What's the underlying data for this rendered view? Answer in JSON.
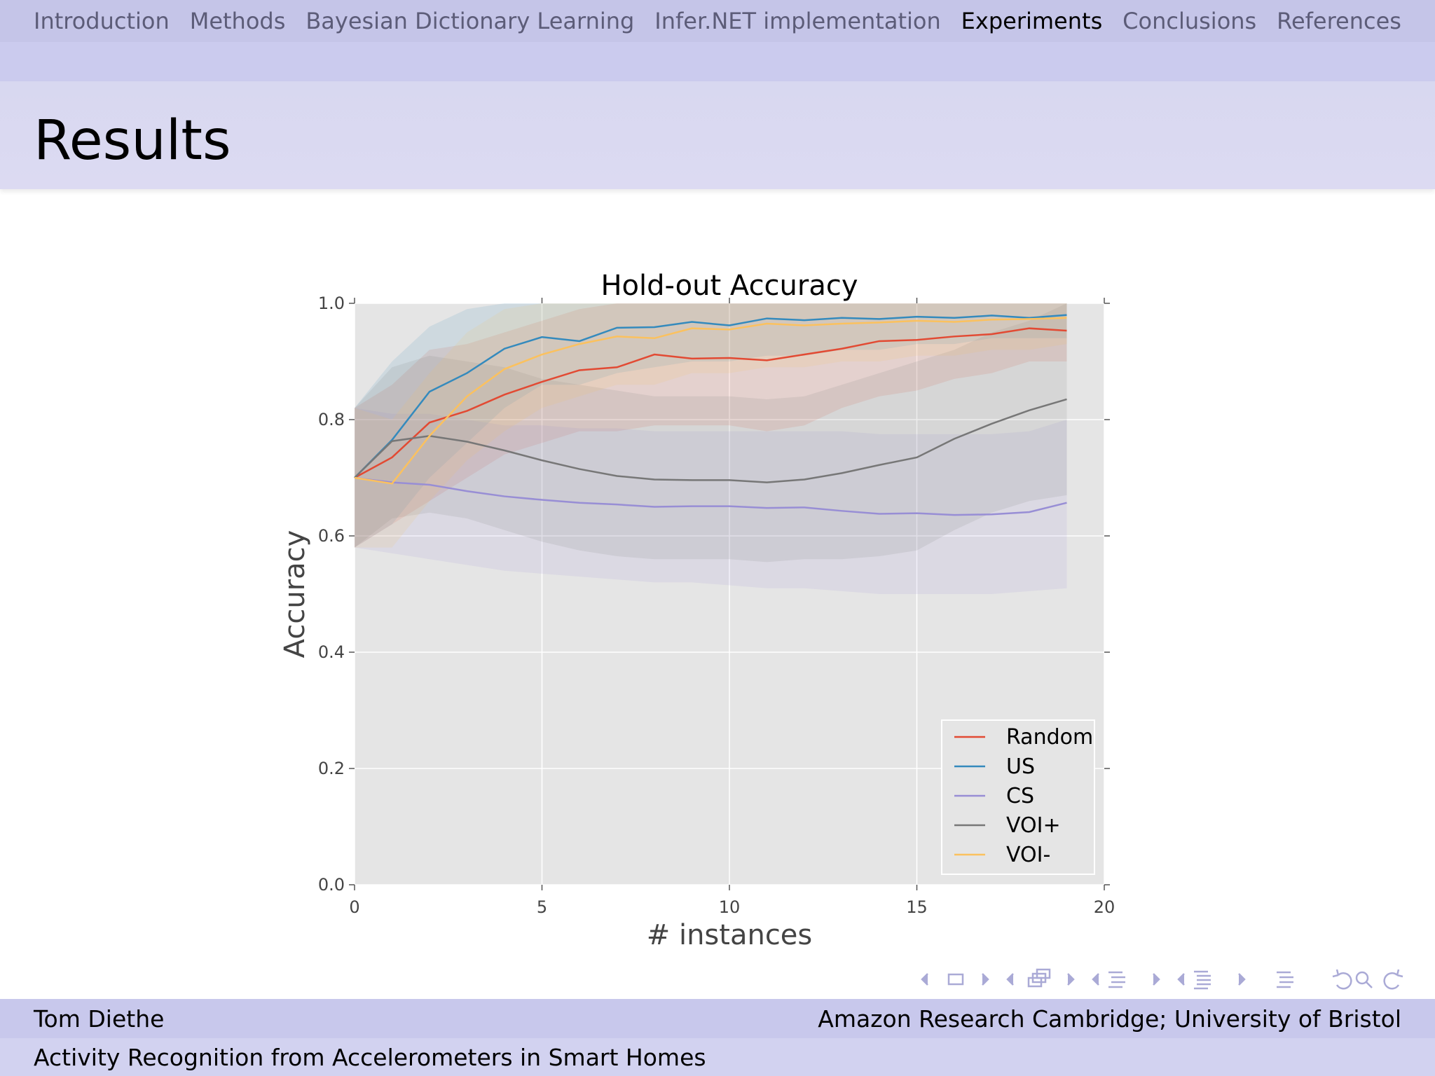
{
  "nav": {
    "items": [
      {
        "label": "Introduction",
        "active": false
      },
      {
        "label": "Methods",
        "active": false
      },
      {
        "label": "Bayesian Dictionary Learning",
        "active": false
      },
      {
        "label": "Infer.NET implementation",
        "active": false
      },
      {
        "label": "Experiments",
        "active": true
      },
      {
        "label": "Conclusions",
        "active": false
      },
      {
        "label": "References",
        "active": false
      }
    ]
  },
  "slide": {
    "title": "Results"
  },
  "footer": {
    "author": "Tom Diethe",
    "affiliation": "Amazon Research Cambridge; University of Bristol",
    "talk_title": "Activity Recognition from Accelerometers in Smart Homes"
  },
  "beamer_nav_icons": [
    "frame-prev-icon",
    "frame-icon",
    "frame-next-icon",
    "subsection-prev-icon",
    "subsection-icon",
    "subsection-next-icon",
    "section-prev-icon",
    "section-icon",
    "section-next-icon",
    "document-prev-icon",
    "document-icon",
    "document-next-icon",
    "outline-icon",
    "back-icon",
    "search-icon",
    "forward-icon"
  ],
  "colors": {
    "Random": "#e24a33",
    "US": "#348abd",
    "CS": "#988ed5",
    "VOI+": "#777777",
    "VOI-": "#fbc15e",
    "plot_bg": "#e5e5e5"
  },
  "chart_data": {
    "type": "line",
    "title": "Hold-out Accuracy",
    "xlabel": "# instances",
    "ylabel": "Accuracy",
    "xlim": [
      0,
      20
    ],
    "ylim": [
      0.0,
      1.0
    ],
    "xticks": [
      "0",
      "5",
      "10",
      "15",
      "20"
    ],
    "yticks": [
      "0.0",
      "0.2",
      "0.4",
      "0.6",
      "0.8",
      "1.0"
    ],
    "grid": true,
    "legend_position": "lower-right",
    "x": [
      0,
      1,
      2,
      3,
      4,
      5,
      6,
      7,
      8,
      9,
      10,
      11,
      12,
      13,
      14,
      15,
      16,
      17,
      18,
      19
    ],
    "series": [
      {
        "name": "Random",
        "values": [
          0.7,
          0.735,
          0.795,
          0.815,
          0.843,
          0.865,
          0.885,
          0.89,
          0.912,
          0.905,
          0.906,
          0.902,
          0.912,
          0.922,
          0.935,
          0.937,
          0.943,
          0.947,
          0.957,
          0.953
        ],
        "lower": [
          0.58,
          0.62,
          0.66,
          0.7,
          0.74,
          0.76,
          0.78,
          0.78,
          0.79,
          0.79,
          0.79,
          0.78,
          0.79,
          0.82,
          0.84,
          0.85,
          0.87,
          0.88,
          0.9,
          0.9
        ],
        "upper": [
          0.82,
          0.86,
          0.92,
          0.93,
          0.95,
          0.97,
          0.99,
          1.0,
          1.0,
          1.0,
          1.0,
          1.0,
          1.0,
          1.0,
          1.0,
          1.0,
          1.0,
          1.0,
          1.0,
          1.0
        ]
      },
      {
        "name": "US",
        "values": [
          0.7,
          0.765,
          0.848,
          0.88,
          0.922,
          0.942,
          0.935,
          0.958,
          0.959,
          0.968,
          0.962,
          0.974,
          0.971,
          0.975,
          0.973,
          0.977,
          0.975,
          0.979,
          0.975,
          0.98
        ],
        "lower": [
          0.58,
          0.62,
          0.7,
          0.76,
          0.82,
          0.86,
          0.86,
          0.88,
          0.89,
          0.9,
          0.9,
          0.91,
          0.91,
          0.92,
          0.92,
          0.93,
          0.93,
          0.94,
          0.94,
          0.94
        ],
        "upper": [
          0.82,
          0.9,
          0.96,
          0.99,
          1.0,
          1.0,
          1.0,
          1.0,
          1.0,
          1.0,
          1.0,
          1.0,
          1.0,
          1.0,
          1.0,
          1.0,
          1.0,
          1.0,
          1.0,
          1.0
        ]
      },
      {
        "name": "CS",
        "values": [
          0.7,
          0.692,
          0.688,
          0.677,
          0.668,
          0.662,
          0.657,
          0.654,
          0.65,
          0.651,
          0.651,
          0.648,
          0.649,
          0.643,
          0.638,
          0.639,
          0.636,
          0.637,
          0.641,
          0.657
        ],
        "lower": [
          0.58,
          0.57,
          0.56,
          0.55,
          0.54,
          0.535,
          0.53,
          0.525,
          0.52,
          0.52,
          0.515,
          0.51,
          0.51,
          0.505,
          0.5,
          0.5,
          0.5,
          0.5,
          0.505,
          0.51
        ],
        "upper": [
          0.82,
          0.81,
          0.81,
          0.8,
          0.79,
          0.79,
          0.785,
          0.785,
          0.78,
          0.78,
          0.78,
          0.78,
          0.78,
          0.78,
          0.775,
          0.775,
          0.775,
          0.775,
          0.78,
          0.8
        ]
      },
      {
        "name": "VOI+",
        "values": [
          0.7,
          0.763,
          0.772,
          0.762,
          0.747,
          0.73,
          0.715,
          0.703,
          0.697,
          0.696,
          0.696,
          0.692,
          0.697,
          0.708,
          0.722,
          0.735,
          0.767,
          0.793,
          0.816,
          0.835
        ],
        "lower": [
          0.58,
          0.63,
          0.64,
          0.63,
          0.61,
          0.59,
          0.575,
          0.565,
          0.56,
          0.56,
          0.56,
          0.555,
          0.56,
          0.56,
          0.565,
          0.575,
          0.61,
          0.64,
          0.66,
          0.67
        ],
        "upper": [
          0.82,
          0.89,
          0.91,
          0.9,
          0.89,
          0.87,
          0.86,
          0.85,
          0.84,
          0.84,
          0.84,
          0.835,
          0.84,
          0.86,
          0.88,
          0.9,
          0.92,
          0.95,
          0.97,
          1.0
        ]
      },
      {
        "name": "VOI-",
        "values": [
          0.7,
          0.69,
          0.772,
          0.84,
          0.887,
          0.912,
          0.93,
          0.943,
          0.94,
          0.957,
          0.955,
          0.965,
          0.962,
          0.965,
          0.967,
          0.97,
          0.968,
          0.972,
          0.973,
          0.975
        ],
        "lower": [
          0.58,
          0.58,
          0.66,
          0.73,
          0.78,
          0.82,
          0.84,
          0.86,
          0.86,
          0.88,
          0.88,
          0.89,
          0.89,
          0.9,
          0.9,
          0.91,
          0.91,
          0.92,
          0.92,
          0.93
        ],
        "upper": [
          0.82,
          0.8,
          0.88,
          0.95,
          0.99,
          1.0,
          1.0,
          1.0,
          1.0,
          1.0,
          1.0,
          1.0,
          1.0,
          1.0,
          1.0,
          1.0,
          1.0,
          1.0,
          1.0,
          1.0
        ]
      }
    ]
  }
}
